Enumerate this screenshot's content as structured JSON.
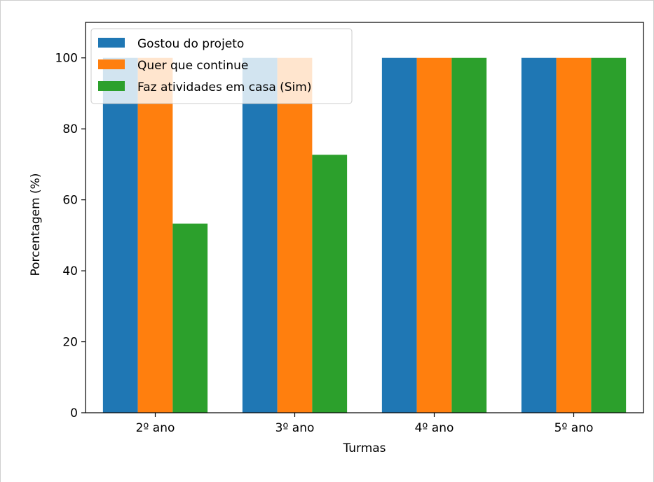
{
  "chart_data": {
    "type": "bar",
    "title": "",
    "xlabel": "Turmas",
    "ylabel": "Porcentagem (%)",
    "categories": [
      "2º ano",
      "3º ano",
      "4º ano",
      "5º ano"
    ],
    "series": [
      {
        "name": "Gostou do projeto",
        "color": "#1f77b4",
        "values": [
          100,
          100,
          100,
          100
        ]
      },
      {
        "name": "Quer que continue",
        "color": "#ff7f0e",
        "values": [
          100,
          100,
          100,
          100
        ]
      },
      {
        "name": "Faz atividades em casa (Sim)",
        "color": "#2ca02c",
        "values": [
          53.3,
          72.7,
          100,
          100
        ]
      }
    ],
    "ylim": [
      0,
      110
    ],
    "yticks": [
      0,
      20,
      40,
      60,
      80,
      100
    ],
    "grid": false,
    "legend_position": "top-left"
  }
}
